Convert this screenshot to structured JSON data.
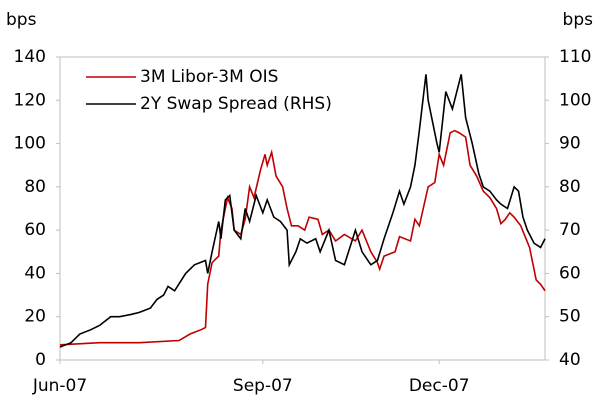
{
  "chart_data": {
    "type": "line",
    "y_label": "bps",
    "y2_label": "bps",
    "xlim": [
      0,
      220
    ],
    "xticks": [
      {
        "value": 0,
        "label": "Jun-07"
      },
      {
        "value": 92,
        "label": "Sep-07"
      },
      {
        "value": 172,
        "label": "Dec-07"
      }
    ],
    "ylim": [
      0,
      140
    ],
    "yticks": [
      0,
      20,
      40,
      60,
      80,
      100,
      120,
      140
    ],
    "y2lim": [
      40,
      110
    ],
    "y2ticks": [
      40,
      50,
      60,
      70,
      80,
      90,
      100,
      110
    ],
    "legend": "upper left",
    "series": [
      {
        "name": "3M Libor-3M OIS",
        "color": "#c00000",
        "x": [
          0,
          18,
          36,
          54,
          59,
          64,
          66,
          67,
          69,
          72,
          73,
          76,
          78,
          79,
          82,
          84,
          86,
          88,
          91,
          93,
          94,
          96,
          98,
          101,
          103,
          105,
          108,
          111,
          113,
          117,
          119,
          122,
          125,
          129,
          134,
          137,
          141,
          144,
          145,
          147,
          152,
          154,
          159,
          161,
          163,
          167,
          170,
          172,
          174,
          177,
          179,
          181,
          184,
          186,
          189,
          192,
          195,
          198,
          200,
          202,
          204,
          206,
          209,
          213,
          216,
          218,
          220
        ],
        "values": [
          7,
          8,
          8,
          9,
          12,
          14,
          15,
          35,
          45,
          48,
          60,
          75,
          70,
          60,
          58,
          65,
          80,
          75,
          88,
          95,
          90,
          96,
          85,
          80,
          70,
          62,
          62,
          60,
          66,
          65,
          58,
          60,
          55,
          58,
          55,
          60,
          50,
          45,
          42,
          48,
          50,
          57,
          55,
          65,
          62,
          80,
          82,
          95,
          90,
          105,
          106,
          105,
          103,
          90,
          85,
          78,
          75,
          70,
          63,
          65,
          68,
          66,
          62,
          52,
          37,
          35,
          32
        ]
      },
      {
        "name": "2Y Swap Spread (RHS)",
        "color": "#000000",
        "axis": "y2",
        "x": [
          0,
          5,
          9,
          14,
          18,
          23,
          27,
          32,
          36,
          41,
          44,
          47,
          49,
          52,
          57,
          61,
          66,
          67,
          69,
          72,
          73,
          75,
          77,
          79,
          82,
          84,
          86,
          89,
          92,
          94,
          97,
          100,
          103,
          104,
          107,
          109,
          112,
          116,
          118,
          122,
          125,
          129,
          134,
          137,
          141,
          144,
          147,
          151,
          154,
          156,
          159,
          161,
          163,
          166,
          167,
          169,
          171,
          172,
          175,
          178,
          181,
          182,
          184,
          187,
          190,
          192,
          195,
          198,
          200,
          203,
          206,
          208,
          210,
          212,
          215,
          218,
          220
        ],
        "values": [
          43,
          44,
          46,
          47,
          48,
          50,
          50,
          50.5,
          51,
          52,
          54,
          55,
          57,
          56,
          60,
          62,
          63,
          60,
          65,
          72,
          68,
          77,
          78,
          70,
          68,
          75,
          72,
          78,
          74,
          77,
          73,
          72,
          70,
          62,
          65,
          68,
          67,
          68,
          65,
          70,
          63,
          62,
          70,
          65,
          62,
          63,
          68,
          74,
          79,
          76,
          80,
          85,
          93,
          106,
          100,
          95,
          90,
          88,
          102,
          98,
          104,
          106,
          96,
          90,
          83,
          80,
          79,
          77,
          76,
          75,
          80,
          79,
          73,
          70,
          67,
          66,
          68
        ]
      }
    ]
  }
}
